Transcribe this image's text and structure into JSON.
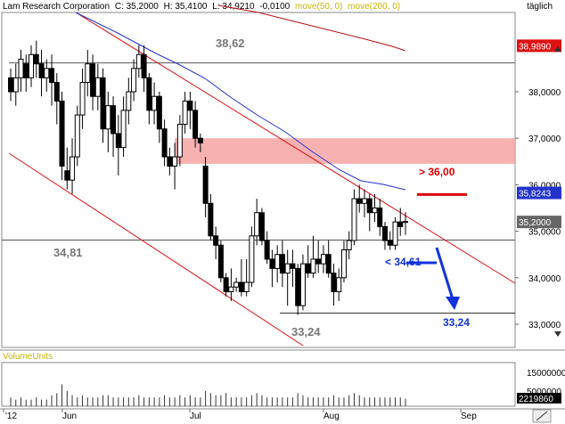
{
  "header": {
    "symbol": "Lam Research Corporation",
    "close": "C: 35,2000",
    "high": "H: 35,4100",
    "low": "L: 34,9210",
    "change": "-0,0100",
    "ma50": "move(50, 0)",
    "ma200": "move(200, 0)",
    "frequency": "täglich"
  },
  "volume_label": "VolumeUnits",
  "colors": {
    "up_candle": "#ffffff",
    "down_candle": "#000000",
    "trend_lines": "#dd1111",
    "ma50": "#2233cc",
    "ma200": "#bb1111",
    "resistance_zone": "#f6a3a3",
    "annotation_red": "#dd0000",
    "annotation_blue": "#1133dd",
    "horizontal_lines": "#555555",
    "label_grey": "#777777"
  },
  "chart_data": {
    "type": "candlestick",
    "title": "Lam Research Corporation",
    "period": "täglich",
    "ylim": [
      32.55,
      40.2
    ],
    "y_ticks": [
      "33,0000",
      "34,0000",
      "35,0000",
      "36,0000",
      "37,0000",
      "38,0000"
    ],
    "x_ticks": [
      "'12",
      "Jun",
      "Jul",
      "Aug",
      "Sep"
    ],
    "price_badges": [
      {
        "label": "38,9890",
        "value": 38.989,
        "color": "#dd1111"
      },
      {
        "label": "35,8243",
        "value": 35.8243,
        "color": "#2233cc"
      },
      {
        "label": "35,2000",
        "value": 35.2,
        "color": "#666666"
      }
    ],
    "horizontal_levels": [
      {
        "value": 38.62,
        "label": "38,62"
      },
      {
        "value": 34.81,
        "label": "34,81"
      },
      {
        "value": 33.24,
        "label": "33,24"
      }
    ],
    "resistance_zone": [
      36.45,
      37.0
    ],
    "annotations": [
      {
        "text": "> 36,00",
        "value": 36.0,
        "color": "#dd0000"
      },
      {
        "text": "< 34,61",
        "value": 34.61,
        "color": "#1133dd"
      },
      {
        "text": "33,24",
        "value": 33.24,
        "color": "#1133dd"
      }
    ],
    "candles": [
      [
        38.3,
        38.0,
        38.5,
        37.8
      ],
      [
        38.0,
        38.3,
        38.6,
        37.7
      ],
      [
        38.3,
        38.7,
        38.9,
        38.0
      ],
      [
        38.6,
        38.3,
        38.8,
        38.0
      ],
      [
        38.3,
        38.8,
        39.0,
        38.1
      ],
      [
        38.8,
        38.6,
        39.1,
        38.3
      ],
      [
        38.6,
        38.3,
        38.9,
        37.9
      ],
      [
        38.3,
        38.5,
        38.7,
        38.0
      ],
      [
        38.5,
        38.2,
        38.8,
        37.7
      ],
      [
        38.2,
        37.8,
        38.4,
        37.3
      ],
      [
        37.8,
        36.4,
        38.0,
        36.1
      ],
      [
        36.3,
        36.1,
        36.8,
        35.9
      ],
      [
        36.1,
        36.6,
        37.0,
        35.8
      ],
      [
        36.6,
        37.5,
        37.7,
        36.4
      ],
      [
        37.5,
        38.2,
        38.5,
        37.2
      ],
      [
        38.2,
        38.6,
        38.9,
        37.9
      ],
      [
        38.6,
        37.9,
        38.8,
        37.6
      ],
      [
        37.9,
        38.3,
        38.6,
        37.6
      ],
      [
        38.3,
        37.2,
        38.5,
        36.9
      ],
      [
        37.2,
        37.7,
        38.0,
        36.7
      ],
      [
        37.7,
        37.1,
        37.9,
        36.6
      ],
      [
        37.1,
        36.8,
        37.5,
        36.2
      ],
      [
        36.8,
        37.6,
        37.9,
        36.6
      ],
      [
        37.6,
        38.0,
        38.3,
        37.3
      ],
      [
        38.0,
        38.5,
        38.7,
        37.8
      ],
      [
        38.5,
        38.8,
        39.0,
        38.3
      ],
      [
        38.8,
        38.3,
        39.0,
        38.0
      ],
      [
        38.3,
        37.6,
        38.4,
        37.3
      ],
      [
        37.6,
        37.9,
        38.2,
        37.3
      ],
      [
        37.9,
        37.2,
        38.0,
        36.9
      ],
      [
        37.2,
        36.6,
        37.4,
        36.4
      ],
      [
        36.6,
        36.4,
        36.8,
        36.2
      ],
      [
        36.4,
        36.6,
        36.9,
        35.9
      ],
      [
        36.6,
        37.3,
        37.5,
        36.4
      ],
      [
        37.3,
        37.8,
        38.0,
        37.1
      ],
      [
        37.8,
        37.6,
        38.0,
        37.2
      ],
      [
        37.6,
        37.0,
        37.8,
        36.8
      ],
      [
        37.0,
        36.9,
        37.1,
        36.7
      ],
      [
        36.4,
        35.6,
        36.6,
        35.3
      ],
      [
        35.6,
        34.9,
        35.8,
        34.8
      ],
      [
        34.9,
        34.7,
        35.1,
        34.4
      ],
      [
        34.7,
        34.0,
        34.8,
        33.9
      ],
      [
        34.0,
        33.7,
        34.1,
        33.6
      ],
      [
        33.7,
        33.8,
        34.2,
        33.5
      ],
      [
        33.8,
        33.9,
        34.0,
        33.7
      ],
      [
        33.9,
        33.7,
        34.4,
        33.6
      ],
      [
        33.7,
        33.9,
        34.4,
        33.6
      ],
      [
        33.9,
        34.9,
        35.1,
        33.8
      ],
      [
        34.9,
        35.4,
        35.7,
        34.7
      ],
      [
        35.4,
        34.8,
        35.5,
        34.7
      ],
      [
        34.8,
        34.4,
        35.0,
        34.3
      ],
      [
        34.4,
        34.2,
        34.6,
        33.8
      ],
      [
        34.2,
        34.5,
        34.7,
        33.9
      ],
      [
        34.5,
        34.1,
        34.8,
        33.8
      ],
      [
        34.1,
        34.3,
        34.6,
        33.4
      ],
      [
        34.3,
        34.2,
        34.6,
        33.8
      ],
      [
        34.2,
        33.4,
        34.3,
        33.2
      ],
      [
        33.4,
        34.3,
        34.5,
        33.3
      ],
      [
        34.3,
        34.1,
        34.7,
        34.0
      ],
      [
        34.1,
        34.4,
        34.9,
        34.0
      ],
      [
        34.4,
        34.3,
        34.8,
        34.1
      ],
      [
        34.3,
        34.5,
        34.7,
        34.1
      ],
      [
        34.5,
        34.1,
        34.8,
        34.0
      ],
      [
        34.1,
        33.7,
        34.3,
        33.4
      ],
      [
        33.7,
        34.0,
        34.2,
        33.5
      ],
      [
        34.0,
        34.6,
        34.8,
        33.9
      ],
      [
        34.6,
        34.8,
        35.0,
        34.4
      ],
      [
        34.8,
        35.7,
        35.9,
        34.7
      ],
      [
        35.7,
        35.6,
        36.0,
        35.4
      ],
      [
        35.6,
        35.7,
        35.9,
        35.3
      ],
      [
        35.7,
        35.4,
        35.8,
        35.0
      ],
      [
        35.4,
        35.5,
        35.8,
        35.2
      ],
      [
        35.5,
        35.1,
        35.7,
        34.9
      ],
      [
        35.1,
        34.8,
        35.2,
        34.6
      ],
      [
        34.8,
        34.7,
        35.0,
        34.6
      ],
      [
        34.7,
        35.2,
        35.3,
        34.6
      ],
      [
        35.2,
        35.1,
        35.5,
        34.9
      ],
      [
        35.21,
        35.2,
        35.41,
        34.921
      ]
    ],
    "volume_ticks": [
      "15000000",
      "5000000"
    ],
    "volume_badge": "2219860",
    "volume": [
      4,
      3,
      4,
      3,
      3,
      4,
      3,
      3,
      5,
      6,
      10,
      7,
      5,
      4,
      5,
      4,
      4,
      4,
      5,
      5,
      4,
      4,
      4,
      4,
      4,
      5,
      4,
      4,
      4,
      4,
      5,
      4,
      4,
      5,
      4,
      5,
      4,
      4,
      7,
      6,
      5,
      5,
      6,
      4,
      4,
      4,
      4,
      5,
      6,
      5,
      4,
      4,
      4,
      4,
      4,
      4,
      6,
      5,
      4,
      4,
      4,
      4,
      4,
      5,
      4,
      4,
      5,
      6,
      5,
      4,
      4,
      4,
      4,
      4,
      4,
      4,
      4,
      3.5
    ],
    "volume_max": 20
  }
}
